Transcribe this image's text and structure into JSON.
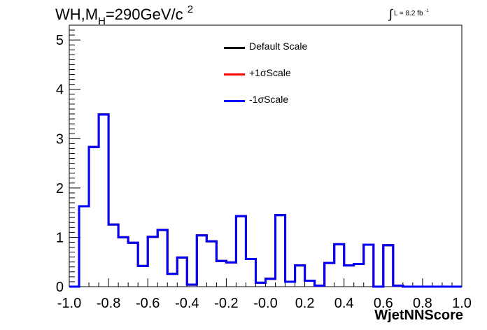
{
  "title": {
    "prefix": "WH,M",
    "subscript": "H",
    "middle": "=290GeV/c",
    "superscript": "2"
  },
  "luminosity": {
    "integral": "∫",
    "text": "L = 8.2 fb",
    "superscript": "-1"
  },
  "chart_data": {
    "type": "line",
    "xlabel": "WjetNNScore",
    "ylabel": "",
    "xlim": [
      -1.0,
      1.0
    ],
    "ylim": [
      0,
      5.3
    ],
    "grid": false,
    "legend_position": "top-center",
    "x_tick_labels": [
      "-1.0",
      "-0.8",
      "-0.6",
      "-0.4",
      "-0.2",
      "-0.0",
      "0.2",
      "0.4",
      "0.6",
      "0.8",
      "1.0"
    ],
    "y_tick_labels": [
      "0",
      "1",
      "2",
      "3",
      "4",
      "5"
    ],
    "bin_edges": [
      -1.0,
      -0.95,
      -0.9,
      -0.85,
      -0.8,
      -0.75,
      -0.7,
      -0.65,
      -0.6,
      -0.55,
      -0.5,
      -0.45,
      -0.4,
      -0.35,
      -0.3,
      -0.25,
      -0.2,
      -0.15,
      -0.1,
      -0.05,
      0.0,
      0.05,
      0.1,
      0.15,
      0.2,
      0.25,
      0.3,
      0.35,
      0.4,
      0.45,
      0.5,
      0.55,
      0.6,
      0.65,
      0.7,
      0.75,
      0.8,
      0.85,
      0.9,
      0.95,
      1.0
    ],
    "series": [
      {
        "name": "Default Scale",
        "color": "#000000",
        "values": [
          0,
          1.63,
          2.83,
          3.49,
          1.26,
          1.0,
          0.89,
          0.42,
          1.01,
          1.15,
          0.26,
          0.59,
          0.04,
          1.04,
          0.92,
          0.52,
          0.49,
          1.43,
          0.56,
          0.08,
          0.16,
          1.45,
          0.1,
          0.43,
          0.12,
          0.02,
          0.48,
          0.86,
          0.43,
          0.46,
          0.85,
          0.0,
          0.84,
          0.02,
          0.0,
          0.0,
          0.0,
          0.0,
          0.0,
          0.0
        ]
      },
      {
        "name": "+1σScale",
        "color": "#ff0000",
        "values": [
          0,
          1.63,
          2.83,
          3.49,
          1.26,
          1.0,
          0.89,
          0.42,
          1.01,
          1.15,
          0.26,
          0.59,
          0.04,
          1.04,
          0.92,
          0.52,
          0.49,
          1.43,
          0.56,
          0.08,
          0.16,
          1.45,
          0.1,
          0.43,
          0.12,
          0.02,
          0.48,
          0.86,
          0.43,
          0.46,
          0.85,
          0.0,
          0.84,
          0.02,
          0.0,
          0.0,
          0.0,
          0.0,
          0.0,
          0.0
        ]
      },
      {
        "name": "-1σScale",
        "color": "#0000ff",
        "values": [
          0,
          1.63,
          2.83,
          3.49,
          1.26,
          1.0,
          0.89,
          0.42,
          1.01,
          1.15,
          0.26,
          0.59,
          0.04,
          1.04,
          0.92,
          0.52,
          0.49,
          1.43,
          0.56,
          0.08,
          0.16,
          1.45,
          0.1,
          0.43,
          0.12,
          0.02,
          0.48,
          0.86,
          0.43,
          0.46,
          0.85,
          0.0,
          0.84,
          0.02,
          0.0,
          0.0,
          0.0,
          0.0,
          0.0,
          0.0
        ]
      }
    ]
  }
}
